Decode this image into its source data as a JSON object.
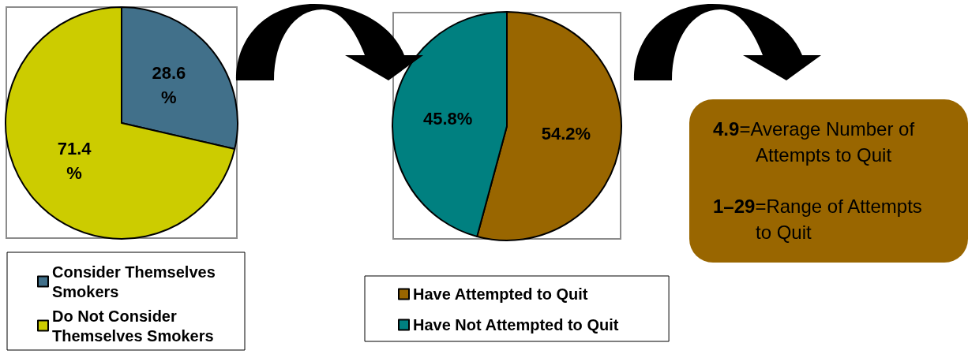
{
  "chart_data": [
    {
      "type": "pie",
      "categories": [
        "Consider Themselves Smokers",
        "Do Not Consider Themselves Smokers"
      ],
      "values": [
        28.6,
        71.4
      ],
      "colors": [
        "#41708a",
        "#cccc00"
      ],
      "value_labels": [
        "28.6%",
        "71.4%"
      ],
      "legend": "bottom"
    },
    {
      "type": "pie",
      "categories": [
        "Have Attempted to Quit",
        "Have Not Attempted to Quit"
      ],
      "values": [
        54.2,
        45.8
      ],
      "colors": [
        "#996600",
        "#008080"
      ],
      "value_labels": [
        "54.2%",
        "45.8%"
      ],
      "legend": "bottom"
    },
    {
      "type": "other",
      "annotations": [
        "4.9=Average Number of Attempts to Quit",
        "1–29=Range of Attempts to Quit"
      ]
    }
  ]
}
